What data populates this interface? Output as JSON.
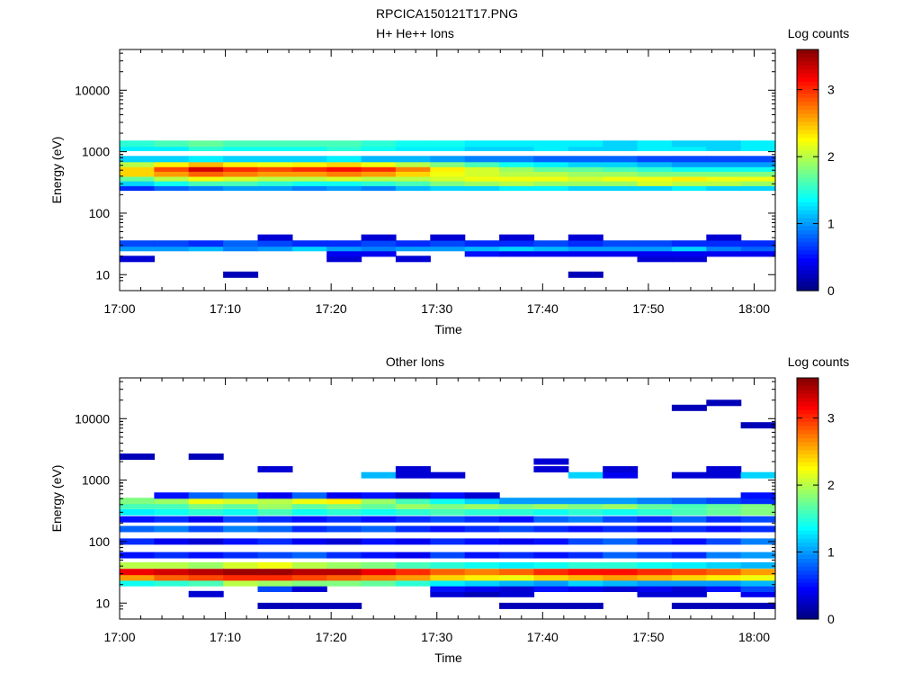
{
  "figure_title": "RPCICA150121T17.PNG",
  "chart_data": [
    {
      "type": "heatmap",
      "title": "H+ He++ Ions",
      "xlabel": "Time",
      "ylabel": "Energy (eV)",
      "x_ticks": [
        "17:00",
        "17:10",
        "17:20",
        "17:30",
        "17:40",
        "17:50",
        "18:00"
      ],
      "y_scale": "log",
      "y_ticks": [
        "10",
        "100",
        "1000",
        "10000"
      ],
      "colorbar": {
        "label": "Log counts",
        "ticks": [
          "0",
          "1",
          "2",
          "3"
        ],
        "range": [
          0,
          3.6
        ]
      },
      "time_bins": [
        "17:00",
        "17:03",
        "17:06",
        "17:09",
        "17:13",
        "17:16",
        "17:19",
        "17:22",
        "17:25",
        "17:28",
        "17:32",
        "17:35",
        "17:38",
        "17:41",
        "17:44",
        "17:47",
        "17:51",
        "17:54",
        "17:57"
      ],
      "bands": [
        {
          "energy_eV": 10,
          "values": [
            0,
            0,
            0,
            0.2,
            0,
            0,
            0,
            0,
            0,
            0,
            0,
            0,
            0,
            0.2,
            0,
            0,
            0,
            0,
            0
          ]
        },
        {
          "energy_eV": 18,
          "values": [
            0.3,
            0,
            0,
            0,
            0,
            0,
            0.3,
            0,
            0.3,
            0,
            0,
            0,
            0,
            0,
            0,
            0.3,
            0.3,
            0,
            0
          ]
        },
        {
          "energy_eV": 22,
          "values": [
            0,
            0,
            0,
            0,
            0,
            0,
            0.4,
            0.4,
            0,
            0,
            0.5,
            0.4,
            0.4,
            0.4,
            0.4,
            0.4,
            0.4,
            0.4,
            0.4
          ]
        },
        {
          "energy_eV": 27,
          "values": [
            1.0,
            1.0,
            1.1,
            0.9,
            1.0,
            1.2,
            1.0,
            0.9,
            1.0,
            1.0,
            1.1,
            1.2,
            1.1,
            1.0,
            1.0,
            1.0,
            1.2,
            0.9,
            0.8
          ]
        },
        {
          "energy_eV": 32,
          "values": [
            0.7,
            0.7,
            0.6,
            0.8,
            0.7,
            0.6,
            0.6,
            0.7,
            0.6,
            0.7,
            0.6,
            0.6,
            0.7,
            0.6,
            0.7,
            0.7,
            0.6,
            0.6,
            0.6
          ]
        },
        {
          "energy_eV": 40,
          "values": [
            0,
            0,
            0,
            0,
            0.3,
            0,
            0,
            0.3,
            0,
            0.3,
            0,
            0.3,
            0,
            0.3,
            0,
            0,
            0,
            0.3,
            0
          ]
        },
        {
          "energy_eV": 260,
          "values": [
            0.6,
            0.8,
            0.9,
            1.0,
            1.0,
            0.9,
            1.0,
            0.9,
            1.1,
            1.2,
            1.2,
            1.3,
            1.3,
            1.2,
            1.2,
            1.2,
            1.3,
            1.2,
            1.2
          ]
        },
        {
          "energy_eV": 310,
          "values": [
            1.2,
            1.4,
            1.6,
            1.6,
            1.5,
            1.4,
            1.4,
            1.5,
            1.6,
            1.8,
            1.9,
            2.0,
            1.9,
            1.9,
            1.9,
            2.1,
            2.0,
            2.0,
            1.9
          ]
        },
        {
          "energy_eV": 370,
          "values": [
            1.7,
            2.0,
            2.2,
            2.1,
            2.0,
            2.0,
            2.1,
            2.0,
            2.0,
            2.1,
            2.2,
            2.2,
            2.2,
            2.1,
            2.2,
            2.2,
            2.3,
            2.2,
            2.2
          ]
        },
        {
          "energy_eV": 440,
          "values": [
            2.4,
            2.6,
            2.8,
            2.7,
            2.6,
            2.6,
            2.7,
            2.6,
            2.4,
            2.2,
            2.1,
            2.0,
            2.0,
            1.9,
            1.9,
            1.8,
            1.8,
            1.8,
            1.8
          ]
        },
        {
          "energy_eV": 530,
          "values": [
            2.4,
            2.9,
            3.3,
            3.0,
            2.9,
            3.0,
            3.1,
            3.0,
            2.7,
            2.3,
            2.1,
            1.9,
            1.7,
            1.7,
            1.6,
            1.5,
            1.4,
            1.4,
            1.4
          ]
        },
        {
          "energy_eV": 630,
          "values": [
            2.0,
            2.3,
            2.5,
            2.3,
            2.2,
            2.3,
            2.4,
            2.2,
            2.0,
            1.8,
            1.6,
            1.4,
            1.3,
            1.2,
            1.2,
            1.1,
            1.0,
            1.0,
            1.0
          ]
        },
        {
          "energy_eV": 760,
          "values": [
            1.2,
            1.2,
            1.3,
            1.2,
            1.2,
            1.2,
            1.3,
            1.1,
            1.1,
            1.0,
            0.9,
            0.9,
            0.8,
            0.8,
            0.8,
            0.7,
            0.7,
            0.7,
            0.7
          ]
        },
        {
          "energy_eV": 1150,
          "values": [
            1.3,
            1.3,
            1.5,
            1.4,
            1.4,
            1.4,
            1.5,
            1.4,
            1.3,
            1.3,
            1.2,
            1.2,
            1.3,
            1.2,
            1.2,
            1.3,
            1.3,
            1.2,
            1.3
          ]
        },
        {
          "energy_eV": 1350,
          "values": [
            1.5,
            1.6,
            1.7,
            1.6,
            1.6,
            1.6,
            1.6,
            1.5,
            1.4,
            1.4,
            1.3,
            1.3,
            1.3,
            1.3,
            1.2,
            1.3,
            1.2,
            1.2,
            1.3
          ]
        }
      ]
    },
    {
      "type": "heatmap",
      "title": "Other Ions",
      "xlabel": "Time",
      "ylabel": "Energy (eV)",
      "x_ticks": [
        "17:00",
        "17:10",
        "17:20",
        "17:30",
        "17:40",
        "17:50",
        "18:00"
      ],
      "y_scale": "log",
      "y_ticks": [
        "10",
        "100",
        "1000",
        "10000"
      ],
      "colorbar": {
        "label": "Log counts",
        "ticks": [
          "0",
          "1",
          "2",
          "3"
        ],
        "range": [
          0,
          3.6
        ]
      },
      "time_bins": [
        "17:00",
        "17:03",
        "17:06",
        "17:09",
        "17:13",
        "17:16",
        "17:19",
        "17:22",
        "17:25",
        "17:28",
        "17:32",
        "17:35",
        "17:38",
        "17:41",
        "17:44",
        "17:47",
        "17:51",
        "17:54",
        "17:57"
      ],
      "bands": [
        {
          "energy_eV": 9,
          "values": [
            0,
            0,
            0,
            0,
            0.2,
            0.2,
            0.2,
            0,
            0,
            0,
            0,
            0.2,
            0.2,
            0.2,
            0,
            0,
            0.2,
            0.2,
            0.2
          ]
        },
        {
          "energy_eV": 14,
          "values": [
            0,
            0,
            0.3,
            0,
            0,
            0,
            0,
            0,
            0,
            0.3,
            0.2,
            0.3,
            0,
            0,
            0,
            0.3,
            0.3,
            0,
            0.4
          ]
        },
        {
          "energy_eV": 17,
          "values": [
            0,
            0,
            0,
            0,
            0.7,
            0.3,
            0,
            0,
            0,
            0.5,
            0.4,
            0.3,
            0.5,
            0.4,
            0.3,
            0.4,
            0.3,
            0.5,
            0.7
          ]
        },
        {
          "energy_eV": 21,
          "values": [
            1.4,
            1.5,
            1.6,
            2.0,
            1.9,
            1.8,
            1.8,
            1.7,
            1.5,
            1.3,
            1.2,
            1.1,
            1.0,
            1.2,
            1.1,
            1.0,
            1.0,
            1.0,
            1.1
          ]
        },
        {
          "energy_eV": 26,
          "values": [
            2.6,
            2.8,
            2.9,
            3.0,
            3.0,
            2.9,
            2.8,
            2.7,
            2.6,
            2.4,
            2.3,
            2.2,
            2.4,
            2.5,
            2.6,
            2.5,
            2.4,
            2.3,
            2.2
          ]
        },
        {
          "energy_eV": 32,
          "values": [
            3.2,
            3.3,
            3.4,
            3.5,
            3.5,
            3.4,
            3.4,
            3.2,
            3.0,
            2.8,
            2.7,
            2.8,
            3.0,
            3.1,
            3.1,
            3.0,
            2.9,
            2.8,
            2.6
          ]
        },
        {
          "energy_eV": 41,
          "values": [
            2.0,
            2.0,
            1.9,
            2.1,
            2.2,
            2.0,
            1.9,
            1.8,
            1.6,
            1.5,
            1.4,
            1.3,
            1.4,
            1.5,
            1.5,
            1.4,
            1.3,
            1.2,
            1.1
          ]
        },
        {
          "energy_eV": 60,
          "values": [
            0.5,
            0.6,
            0.5,
            0.6,
            0.7,
            0.8,
            0.6,
            0.5,
            0.4,
            0.7,
            0.5,
            0.6,
            0.5,
            0.6,
            0.8,
            0.7,
            0.6,
            0.9,
            1.0
          ]
        },
        {
          "energy_eV": 100,
          "values": [
            0.6,
            0.4,
            0.3,
            0.5,
            0.6,
            0.4,
            0.3,
            0.5,
            0.4,
            0.6,
            0.5,
            0.4,
            0.5,
            0.7,
            0.8,
            0.6,
            0.5,
            0.7,
            0.9
          ]
        },
        {
          "energy_eV": 160,
          "values": [
            0.8,
            0.9,
            0.7,
            0.9,
            0.8,
            0.6,
            0.7,
            0.8,
            0.6,
            0.5,
            0.6,
            0.7,
            0.6,
            0.5,
            0.6,
            0.5,
            0.6,
            0.5,
            0.6
          ]
        },
        {
          "energy_eV": 230,
          "values": [
            0.5,
            0.6,
            0.4,
            0.7,
            0.6,
            0.5,
            0.6,
            0.5,
            0.6,
            0.7,
            0.6,
            0.5,
            0.8,
            0.9,
            0.7,
            0.6,
            0.8,
            0.6,
            0.7
          ]
        },
        {
          "energy_eV": 300,
          "values": [
            1.3,
            1.4,
            1.5,
            1.4,
            1.6,
            1.4,
            1.5,
            1.4,
            1.5,
            1.6,
            1.5,
            1.5,
            1.4,
            1.5,
            1.4,
            1.5,
            1.6,
            1.7,
            1.8
          ]
        },
        {
          "energy_eV": 380,
          "values": [
            1.6,
            1.6,
            1.8,
            1.7,
            1.9,
            1.7,
            1.8,
            1.7,
            1.9,
            1.8,
            1.9,
            1.8,
            1.9,
            1.8,
            1.9,
            1.7,
            1.6,
            1.7,
            1.8
          ]
        },
        {
          "energy_eV": 460,
          "values": [
            1.8,
            1.9,
            2.2,
            2.1,
            2.0,
            2.2,
            2.3,
            1.9,
            1.6,
            1.4,
            1.2,
            1.0,
            1.0,
            1.0,
            1.0,
            0.9,
            0.8,
            0.7,
            0.6
          ]
        },
        {
          "energy_eV": 560,
          "values": [
            0,
            0.5,
            0.8,
            0.9,
            0.4,
            0.8,
            0.4,
            0.5,
            0.3,
            0.5,
            0.3,
            0,
            0,
            0,
            0,
            0,
            0,
            0,
            0.5
          ]
        },
        {
          "energy_eV": 1200,
          "values": [
            0,
            0,
            0,
            0,
            0,
            0,
            0,
            1.1,
            0.3,
            0.3,
            0,
            0,
            0,
            1.2,
            0.4,
            0,
            0.3,
            0.3,
            1.2
          ]
        },
        {
          "energy_eV": 1500,
          "values": [
            0,
            0,
            0,
            0,
            0.3,
            0,
            0,
            0,
            0.3,
            0,
            0,
            0,
            0.3,
            0,
            0.3,
            0,
            0,
            0.3,
            0
          ]
        },
        {
          "energy_eV": 2000,
          "values": [
            0,
            0,
            0,
            0,
            0,
            0,
            0,
            0,
            0,
            0,
            0,
            0,
            0.3,
            0,
            0,
            0,
            0,
            0,
            0
          ]
        },
        {
          "energy_eV": 2400,
          "values": [
            0.2,
            0,
            0.2,
            0,
            0,
            0,
            0,
            0,
            0,
            0,
            0,
            0,
            0,
            0,
            0,
            0,
            0,
            0,
            0
          ]
        },
        {
          "energy_eV": 7800,
          "values": [
            0,
            0,
            0,
            0,
            0,
            0,
            0,
            0,
            0,
            0,
            0,
            0,
            0,
            0,
            0,
            0,
            0,
            0,
            0.2
          ]
        },
        {
          "energy_eV": 15000,
          "values": [
            0,
            0,
            0,
            0,
            0,
            0,
            0,
            0,
            0,
            0,
            0,
            0,
            0,
            0,
            0,
            0,
            0.2,
            0,
            0
          ]
        },
        {
          "energy_eV": 18000,
          "values": [
            0,
            0,
            0,
            0,
            0,
            0,
            0,
            0,
            0,
            0,
            0,
            0,
            0,
            0,
            0,
            0,
            0,
            0.2,
            0
          ]
        }
      ]
    }
  ]
}
